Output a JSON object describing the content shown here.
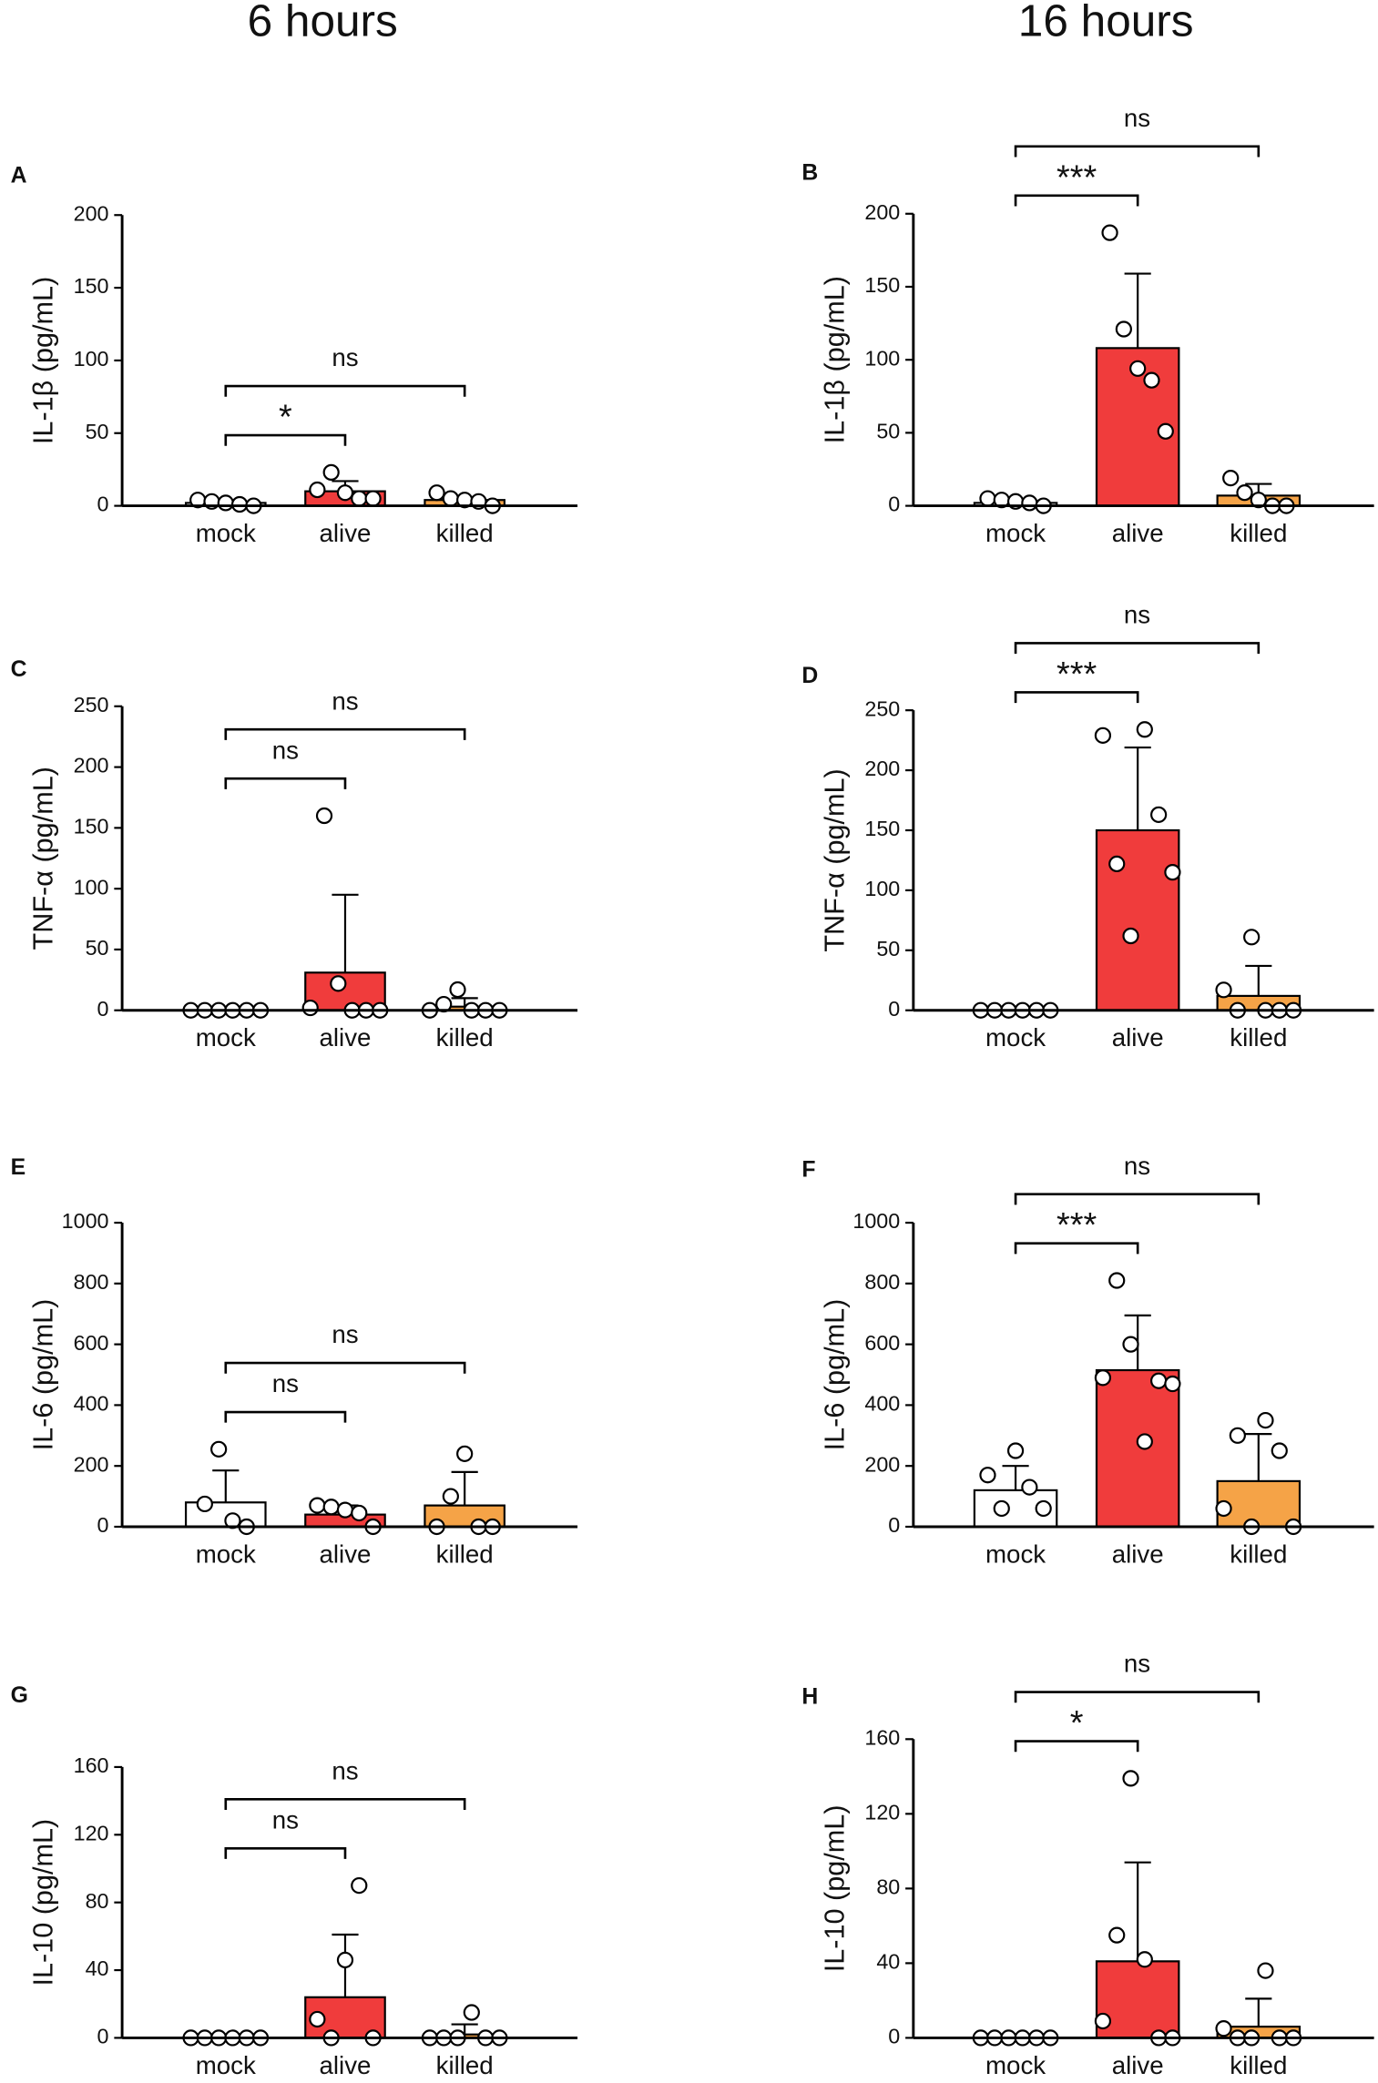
{
  "column_titles": [
    "6 hours",
    "16 hours"
  ],
  "chart_data": [
    {
      "type": "bar",
      "panel": "A",
      "ylabel": "IL-1β (pg/mL)",
      "categories": [
        "mock",
        "alive",
        "killed"
      ],
      "colors": [
        "#ffffff",
        "#f03c3c",
        "#f5a347"
      ],
      "values": [
        2,
        10,
        4
      ],
      "errors": [
        1,
        7,
        2
      ],
      "points": [
        [
          4,
          3,
          2,
          1,
          0
        ],
        [
          11,
          23,
          9,
          5,
          5
        ],
        [
          9,
          5,
          4,
          3,
          0
        ]
      ],
      "ylim": [
        0,
        200
      ],
      "yticks": [
        0,
        50,
        100,
        150,
        200
      ],
      "comparisons": [
        {
          "groups": [
            0,
            1
          ],
          "label": "*"
        },
        {
          "groups": [
            0,
            2
          ],
          "label": "ns"
        }
      ]
    },
    {
      "type": "bar",
      "panel": "B",
      "ylabel": "IL-1β (pg/mL)",
      "categories": [
        "mock",
        "alive",
        "killed"
      ],
      "colors": [
        "#ffffff",
        "#f03c3c",
        "#f5a347"
      ],
      "values": [
        2,
        108,
        7
      ],
      "errors": [
        1,
        51,
        8
      ],
      "points": [
        [
          5,
          4,
          3,
          2,
          0
        ],
        [
          187,
          121,
          94,
          86,
          51
        ],
        [
          19,
          9,
          4,
          0,
          0
        ]
      ],
      "ylim": [
        0,
        200
      ],
      "yticks": [
        0,
        50,
        100,
        150,
        200
      ],
      "comparisons": [
        {
          "groups": [
            0,
            1
          ],
          "label": "***"
        },
        {
          "groups": [
            0,
            2
          ],
          "label": "ns"
        }
      ]
    },
    {
      "type": "bar",
      "panel": "C",
      "ylabel": "TNF-α (pg/mL)",
      "categories": [
        "mock",
        "alive",
        "killed"
      ],
      "colors": [
        "#ffffff",
        "#f03c3c",
        "#f5a347"
      ],
      "values": [
        0,
        31,
        3
      ],
      "errors": [
        0,
        64,
        7
      ],
      "points": [
        [
          0,
          0,
          0,
          0,
          0,
          0
        ],
        [
          2,
          160,
          22,
          0,
          0,
          0
        ],
        [
          0,
          5,
          17,
          0,
          0,
          0
        ]
      ],
      "ylim": [
        0,
        250
      ],
      "yticks": [
        0,
        50,
        100,
        150,
        200,
        250
      ],
      "comparisons": [
        {
          "groups": [
            0,
            1
          ],
          "label": "ns"
        },
        {
          "groups": [
            0,
            2
          ],
          "label": "ns"
        }
      ]
    },
    {
      "type": "bar",
      "panel": "D",
      "ylabel": "TNF-α (pg/mL)",
      "categories": [
        "mock",
        "alive",
        "killed"
      ],
      "colors": [
        "#ffffff",
        "#f03c3c",
        "#f5a347"
      ],
      "values": [
        0,
        150,
        12
      ],
      "errors": [
        0,
        69,
        25
      ],
      "points": [
        [
          0,
          0,
          0,
          0,
          0,
          0
        ],
        [
          229,
          122,
          62,
          234,
          163,
          115
        ],
        [
          17,
          0,
          61,
          0,
          0,
          0
        ]
      ],
      "ylim": [
        0,
        250
      ],
      "yticks": [
        0,
        50,
        100,
        150,
        200,
        250
      ],
      "comparisons": [
        {
          "groups": [
            0,
            1
          ],
          "label": "***"
        },
        {
          "groups": [
            0,
            2
          ],
          "label": "ns"
        }
      ]
    },
    {
      "type": "bar",
      "panel": "E",
      "ylabel": "IL-6 (pg/mL)",
      "categories": [
        "mock",
        "alive",
        "killed"
      ],
      "colors": [
        "#ffffff",
        "#f03c3c",
        "#f5a347"
      ],
      "values": [
        80,
        40,
        70
      ],
      "errors": [
        105,
        30,
        110
      ],
      "points": [
        [
          75,
          255,
          20,
          0
        ],
        [
          70,
          65,
          55,
          45,
          0
        ],
        [
          0,
          100,
          240,
          0,
          0
        ]
      ],
      "ylim": [
        0,
        1000
      ],
      "yticks": [
        0,
        200,
        400,
        600,
        800,
        1000
      ],
      "comparisons": [
        {
          "groups": [
            0,
            1
          ],
          "label": "ns"
        },
        {
          "groups": [
            0,
            2
          ],
          "label": "ns"
        }
      ]
    },
    {
      "type": "bar",
      "panel": "F",
      "ylabel": "IL-6 (pg/mL)",
      "categories": [
        "mock",
        "alive",
        "killed"
      ],
      "colors": [
        "#ffffff",
        "#f03c3c",
        "#f5a347"
      ],
      "values": [
        120,
        515,
        150
      ],
      "errors": [
        80,
        180,
        155
      ],
      "points": [
        [
          170,
          60,
          250,
          130,
          60
        ],
        [
          490,
          810,
          600,
          280,
          480,
          470
        ],
        [
          60,
          300,
          0,
          350,
          250,
          0
        ]
      ],
      "ylim": [
        0,
        1000
      ],
      "yticks": [
        0,
        200,
        400,
        600,
        800,
        1000
      ],
      "comparisons": [
        {
          "groups": [
            0,
            1
          ],
          "label": "***"
        },
        {
          "groups": [
            0,
            2
          ],
          "label": "ns"
        }
      ]
    },
    {
      "type": "bar",
      "panel": "G",
      "ylabel": "IL-10 (pg/mL)",
      "categories": [
        "mock",
        "alive",
        "killed"
      ],
      "colors": [
        "#ffffff",
        "#f03c3c",
        "#f5a347"
      ],
      "values": [
        0,
        24,
        2
      ],
      "errors": [
        0,
        37,
        6
      ],
      "points": [
        [
          0,
          0,
          0,
          0,
          0,
          0
        ],
        [
          11,
          0,
          46,
          90,
          0
        ],
        [
          0,
          0,
          0,
          15,
          0,
          0
        ]
      ],
      "ylim": [
        0,
        160
      ],
      "yticks": [
        0,
        40,
        80,
        120,
        160
      ],
      "comparisons": [
        {
          "groups": [
            0,
            1
          ],
          "label": "ns"
        },
        {
          "groups": [
            0,
            2
          ],
          "label": "ns"
        }
      ]
    },
    {
      "type": "bar",
      "panel": "H",
      "ylabel": "IL-10 (pg/mL)",
      "categories": [
        "mock",
        "alive",
        "killed"
      ],
      "colors": [
        "#ffffff",
        "#f03c3c",
        "#f5a347"
      ],
      "values": [
        0,
        41,
        6
      ],
      "errors": [
        0,
        53,
        15
      ],
      "points": [
        [
          0,
          0,
          0,
          0,
          0,
          0
        ],
        [
          9,
          55,
          139,
          42,
          0,
          0
        ],
        [
          5,
          0,
          0,
          36,
          0,
          0
        ]
      ],
      "ylim": [
        0,
        160
      ],
      "yticks": [
        0,
        40,
        80,
        120,
        160
      ],
      "comparisons": [
        {
          "groups": [
            0,
            1
          ],
          "label": "*"
        },
        {
          "groups": [
            0,
            2
          ],
          "label": "ns"
        }
      ]
    }
  ]
}
